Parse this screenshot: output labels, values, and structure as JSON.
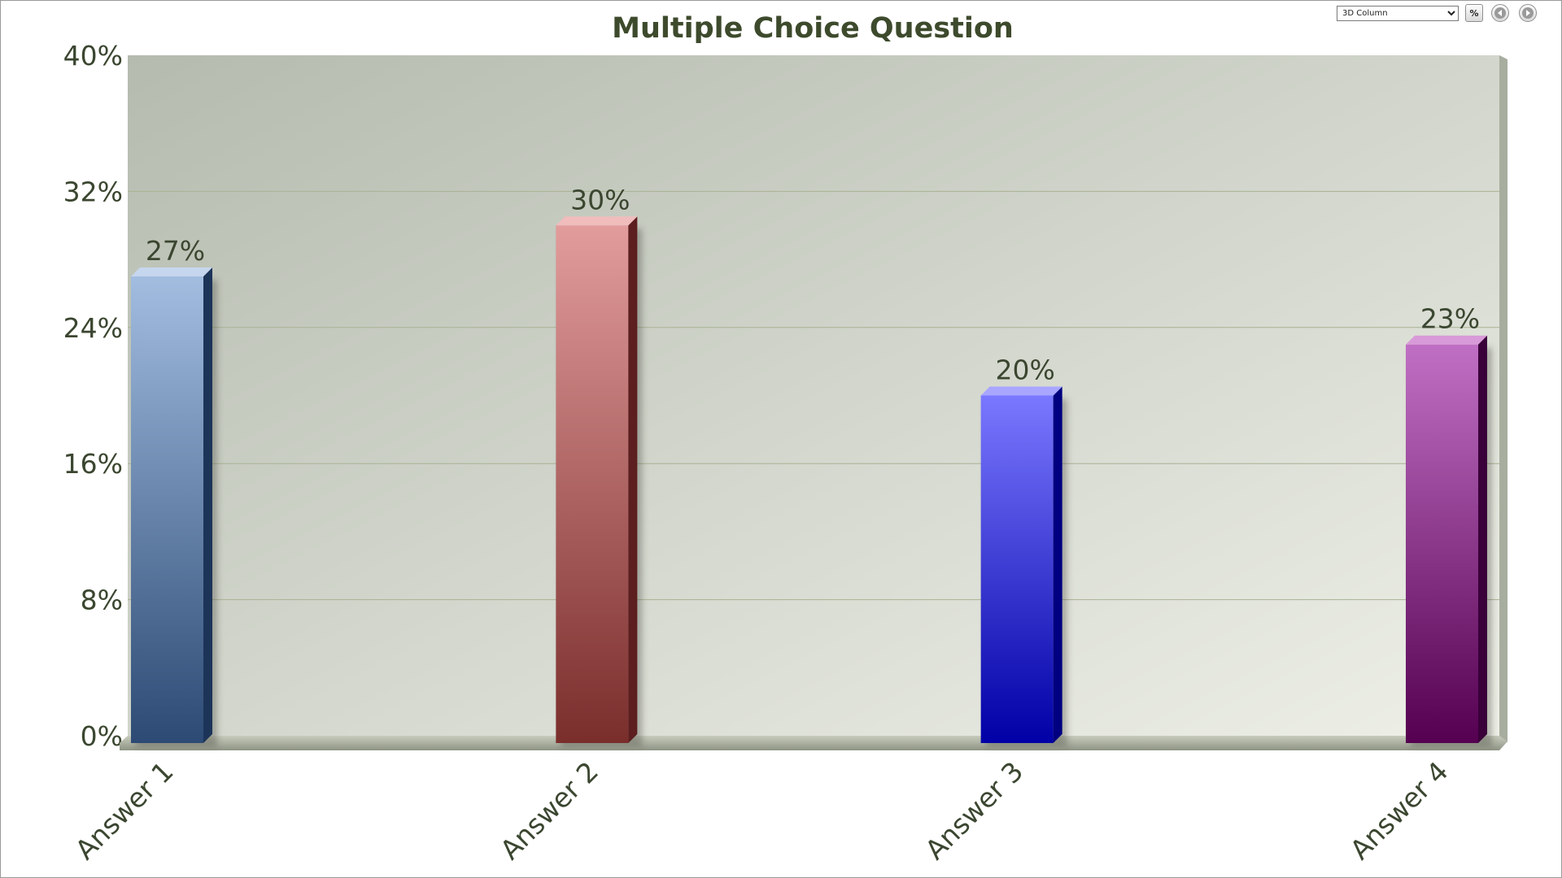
{
  "toolbar": {
    "chart_type_value": "3D Column",
    "percent_label": "%",
    "prev_icon": "arrow-left-circle-icon",
    "next_icon": "arrow-right-circle-icon"
  },
  "chart_data": {
    "type": "bar",
    "title": "Multiple Choice Question",
    "xlabel": "",
    "ylabel": "",
    "categories": [
      "Answer 1",
      "Answer 2",
      "Answer 3",
      "Answer 4"
    ],
    "values": [
      27,
      30,
      20,
      23
    ],
    "value_labels": [
      "27%",
      "30%",
      "20%",
      "23%"
    ],
    "ylim": [
      0,
      40
    ],
    "yticks": [
      0,
      8,
      16,
      24,
      32,
      40
    ],
    "ytick_labels": [
      "0%",
      "8%",
      "16%",
      "24%",
      "32%",
      "40%"
    ],
    "grid": true,
    "legend": "none",
    "style": "3d-column",
    "bar_colors": [
      {
        "light": "#a2bde0",
        "dark": "#2c4a74",
        "side": "#1c3458",
        "top": "#c6d6ee"
      },
      {
        "light": "#e29c9c",
        "dark": "#7a2e2c",
        "side": "#5c1e1e",
        "top": "#f0bcbc"
      },
      {
        "light": "#7a78ff",
        "dark": "#0000a6",
        "side": "#000080",
        "top": "#a8a6ff"
      },
      {
        "light": "#c070c4",
        "dark": "#550050",
        "side": "#3a003a",
        "top": "#d89ad8"
      }
    ],
    "plot_background": [
      "#b5bbaf",
      "#eef0e8"
    ],
    "title_color": "#3d4a2c"
  }
}
